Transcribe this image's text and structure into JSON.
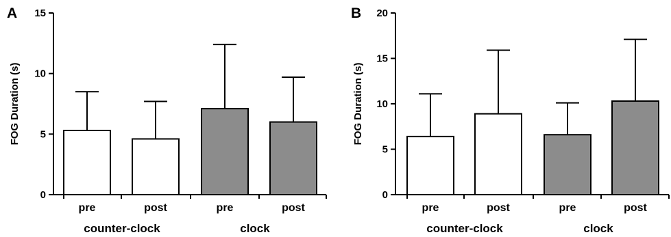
{
  "chart_data": [
    {
      "type": "bar",
      "panel": "A",
      "ylabel": "FOG Duration (s)",
      "ylim": [
        0,
        15
      ],
      "yticks": [
        0,
        5,
        10,
        15
      ],
      "categories": [
        "pre",
        "post",
        "pre",
        "post"
      ],
      "groups": [
        {
          "label": "counter-clock",
          "categories": [
            "pre",
            "post"
          ]
        },
        {
          "label": "clock",
          "categories": [
            "pre",
            "post"
          ]
        }
      ],
      "values": [
        5.3,
        4.6,
        7.1,
        6.0
      ],
      "error_upper": [
        8.5,
        7.7,
        12.4,
        9.7
      ],
      "bar_colors": [
        "#ffffff",
        "#ffffff",
        "#8c8c8c",
        "#8c8c8c"
      ]
    },
    {
      "type": "bar",
      "panel": "B",
      "ylabel": "FOG Duration (s)",
      "ylim": [
        0,
        20
      ],
      "yticks": [
        0,
        5,
        10,
        15,
        20
      ],
      "categories": [
        "pre",
        "post",
        "pre",
        "post"
      ],
      "groups": [
        {
          "label": "counter-clock",
          "categories": [
            "pre",
            "post"
          ]
        },
        {
          "label": "clock",
          "categories": [
            "pre",
            "post"
          ]
        }
      ],
      "values": [
        6.4,
        8.9,
        6.6,
        10.3
      ],
      "error_upper": [
        11.1,
        15.9,
        10.1,
        17.1
      ],
      "bar_colors": [
        "#ffffff",
        "#ffffff",
        "#8c8c8c",
        "#8c8c8c"
      ]
    }
  ]
}
